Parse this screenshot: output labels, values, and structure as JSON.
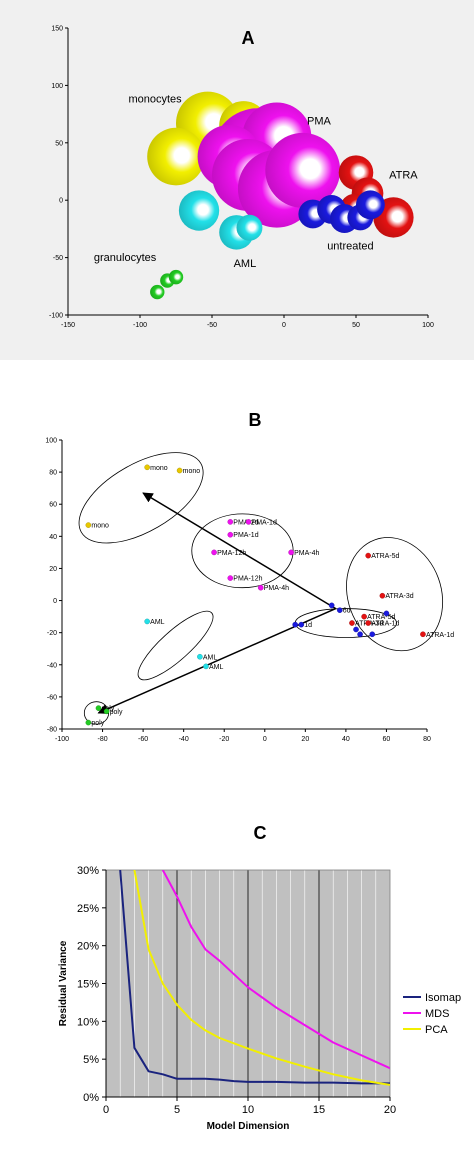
{
  "panels": [
    {
      "id": "A",
      "label": "A",
      "chart_data": {
        "type": "scatter",
        "xlim": [
          -150,
          100
        ],
        "ylim": [
          -100,
          150
        ],
        "x_ticks": [
          -150,
          -100,
          -50,
          0,
          50,
          100
        ],
        "y_ticks": [
          -100,
          -50,
          0,
          50,
          100,
          150
        ],
        "grid": false,
        "series": [
          {
            "group": "monocytes",
            "color": "#f2ef00",
            "points": [
              {
                "x": -53,
                "y": 67,
                "r": 22
              },
              {
                "x": -28,
                "y": 65,
                "r": 17
              },
              {
                "x": -75,
                "y": 38,
                "r": 20
              }
            ]
          },
          {
            "group": "PMA",
            "color": "#ee11ee",
            "points": [
              {
                "x": -18,
                "y": 40,
                "r": 32
              },
              {
                "x": -5,
                "y": 55,
                "r": 24
              },
              {
                "x": -38,
                "y": 38,
                "r": 22
              },
              {
                "x": -25,
                "y": 22,
                "r": 25
              },
              {
                "x": -5,
                "y": 10,
                "r": 27
              },
              {
                "x": 13,
                "y": 26,
                "r": 26
              }
            ]
          },
          {
            "group": "ATRA",
            "color": "#e31212",
            "points": [
              {
                "x": 50,
                "y": 24,
                "r": 12
              },
              {
                "x": 58,
                "y": 6,
                "r": 11
              },
              {
                "x": 49,
                "y": -7,
                "r": 10
              },
              {
                "x": 76,
                "y": -15,
                "r": 14
              }
            ]
          },
          {
            "group": "untreated",
            "color": "#1a1ade",
            "points": [
              {
                "x": 20,
                "y": -12,
                "r": 10
              },
              {
                "x": 33,
                "y": -8,
                "r": 10
              },
              {
                "x": 42,
                "y": -16,
                "r": 10
              },
              {
                "x": 53,
                "y": -15,
                "r": 9
              },
              {
                "x": 60,
                "y": -4,
                "r": 10
              }
            ]
          },
          {
            "group": "AML",
            "color": "#22e0e8",
            "points": [
              {
                "x": -59,
                "y": -9,
                "r": 14
              },
              {
                "x": -33,
                "y": -28,
                "r": 12
              },
              {
                "x": -24,
                "y": -24,
                "r": 9
              }
            ]
          },
          {
            "group": "granulocytes",
            "color": "#22cc22",
            "points": [
              {
                "x": -88,
                "y": -80,
                "r": 5
              },
              {
                "x": -81,
                "y": -70,
                "r": 5
              },
              {
                "x": -75,
                "y": -67,
                "r": 5
              }
            ]
          }
        ],
        "annotations": [
          {
            "text": "monocytes",
            "x": -108,
            "y": 85
          },
          {
            "text": "PMA",
            "x": 16,
            "y": 66
          },
          {
            "text": "ATRA",
            "x": 73,
            "y": 19
          },
          {
            "text": "untreated",
            "x": 30,
            "y": -43
          },
          {
            "text": "AML",
            "x": -35,
            "y": -58
          },
          {
            "text": "granulocytes",
            "x": -132,
            "y": -53
          }
        ]
      }
    },
    {
      "id": "B",
      "label": "B",
      "chart_data": {
        "type": "scatter",
        "xlim": [
          -100,
          80
        ],
        "ylim": [
          -80,
          100
        ],
        "x_ticks": [
          -100,
          -80,
          -60,
          -40,
          -20,
          0,
          20,
          40,
          60,
          80
        ],
        "y_ticks": [
          -80,
          -60,
          -40,
          -20,
          0,
          20,
          40,
          60,
          80,
          100
        ],
        "grid": false,
        "points": [
          {
            "x": -58,
            "y": 83,
            "color": "#e8c800",
            "label": "mono"
          },
          {
            "x": -42,
            "y": 81,
            "color": "#e8c800",
            "label": "mono"
          },
          {
            "x": -87,
            "y": 47,
            "color": "#e8c800",
            "label": "mono"
          },
          {
            "x": -17,
            "y": 49,
            "color": "#ee11ee",
            "label": "PMA-2d"
          },
          {
            "x": -8,
            "y": 49,
            "color": "#ee11ee",
            "label": "PMA-1d"
          },
          {
            "x": -17,
            "y": 41,
            "color": "#ee11ee",
            "label": "PMA-1d"
          },
          {
            "x": -25,
            "y": 30,
            "color": "#ee11ee",
            "label": "PMA-12h"
          },
          {
            "x": 13,
            "y": 30,
            "color": "#ee11ee",
            "label": "PMA-4h"
          },
          {
            "x": -17,
            "y": 14,
            "color": "#ee11ee",
            "label": "PMA-12h"
          },
          {
            "x": -2,
            "y": 8,
            "color": "#ee11ee",
            "label": "PMA-4h"
          },
          {
            "x": 51,
            "y": 28,
            "color": "#e31212",
            "label": "ATRA-5d"
          },
          {
            "x": 58,
            "y": 3,
            "color": "#e31212",
            "label": "ATRA-3d"
          },
          {
            "x": 49,
            "y": -10,
            "color": "#e31212",
            "label": "ATRA-5d"
          },
          {
            "x": 43,
            "y": -14,
            "color": "#e31212",
            "label": "ATRA-3d"
          },
          {
            "x": 51,
            "y": -14,
            "color": "#e31212",
            "label": "ATRA-1d"
          },
          {
            "x": 78,
            "y": -21,
            "color": "#e31212",
            "label": "ATRA-1d"
          },
          {
            "x": 33,
            "y": -3,
            "color": "#1a1ade",
            "label": ""
          },
          {
            "x": 37,
            "y": -6,
            "color": "#1a1ade",
            "label": "6d"
          },
          {
            "x": 15,
            "y": -15,
            "color": "#1a1ade",
            "label": ""
          },
          {
            "x": 18,
            "y": -15,
            "color": "#1a1ade",
            "label": "1d"
          },
          {
            "x": 45,
            "y": -18,
            "color": "#1a1ade",
            "label": ""
          },
          {
            "x": 47,
            "y": -21,
            "color": "#1a1ade",
            "label": ""
          },
          {
            "x": 53,
            "y": -21,
            "color": "#1a1ade",
            "label": ""
          },
          {
            "x": 60,
            "y": -8,
            "color": "#1a1ade",
            "label": ""
          },
          {
            "x": -58,
            "y": -13,
            "color": "#22e0e8",
            "label": "AML"
          },
          {
            "x": -32,
            "y": -35,
            "color": "#22e0e8",
            "label": "AML"
          },
          {
            "x": -29,
            "y": -41,
            "color": "#22e0e8",
            "label": "AML"
          },
          {
            "x": -82,
            "y": -67,
            "color": "#22cc22",
            "label": "poly"
          },
          {
            "x": -78,
            "y": -69,
            "color": "#22cc22",
            "label": "poly"
          },
          {
            "x": -87,
            "y": -76,
            "color": "#22cc22",
            "label": "poly"
          }
        ],
        "ellipses": [
          {
            "cx": -61,
            "cy": 64,
            "rx": 34,
            "ry": 21,
            "angle": -30
          },
          {
            "cx": -11,
            "cy": 31,
            "rx": 25,
            "ry": 23,
            "angle": 0
          },
          {
            "cx": 64,
            "cy": 4,
            "rx": 23,
            "ry": 36,
            "angle": -20
          },
          {
            "cx": 40,
            "cy": -14,
            "rx": 25,
            "ry": 9,
            "angle": 0
          },
          {
            "cx": -44,
            "cy": -28,
            "rx": 24,
            "ry": 9,
            "angle": -42
          },
          {
            "cx": -83,
            "cy": -70,
            "rx": 6,
            "ry": 7,
            "angle": 0
          }
        ],
        "arrows": [
          {
            "from": [
              35,
              -5
            ],
            "to": [
              -60,
              67
            ]
          },
          {
            "from": [
              35,
              -5
            ],
            "to": [
              -82,
              -70
            ]
          }
        ]
      }
    },
    {
      "id": "C",
      "label": "C",
      "chart_data": {
        "type": "line",
        "xlabel": "Model Dimension",
        "ylabel": "Residual Variance",
        "xlim": [
          0,
          20
        ],
        "ylim": [
          0,
          30
        ],
        "x_ticks": [
          0,
          5,
          10,
          15,
          20
        ],
        "y_ticks": [
          "0%",
          "5%",
          "10%",
          "15%",
          "20%",
          "25%",
          "30%"
        ],
        "grid": true,
        "legend": "right",
        "series": [
          {
            "name": "Isomap",
            "color": "#1a237e",
            "x": [
              1,
              2,
              3,
              4,
              5,
              6,
              7,
              8,
              9,
              10,
              12,
              14,
              16,
              18,
              20
            ],
            "values": [
              30,
              6.5,
              3.4,
              3.0,
              2.4,
              2.4,
              2.4,
              2.3,
              2.1,
              2.0,
              2.0,
              1.9,
              1.9,
              1.8,
              1.8
            ]
          },
          {
            "name": "MDS",
            "color": "#ee11ee",
            "x": [
              4,
              5,
              6,
              7,
              8,
              10,
              12,
              14,
              16,
              18,
              20
            ],
            "values": [
              30,
              26.5,
              22.5,
              19.5,
              18.0,
              14.5,
              11.8,
              9.5,
              7.2,
              5.5,
              3.8
            ]
          },
          {
            "name": "PCA",
            "color": "#f2ef00",
            "x": [
              2,
              3,
              4,
              5,
              6,
              7,
              8,
              10,
              12,
              14,
              16,
              18,
              20
            ],
            "values": [
              30,
              19.5,
              15.0,
              12.2,
              10.2,
              8.8,
              7.8,
              6.4,
              5.1,
              4.0,
              3.0,
              2.2,
              1.6
            ]
          }
        ]
      }
    }
  ],
  "colors": {
    "panelA_background": "#f0f0f0",
    "panelC_plot_background": "#c0c0c0"
  }
}
